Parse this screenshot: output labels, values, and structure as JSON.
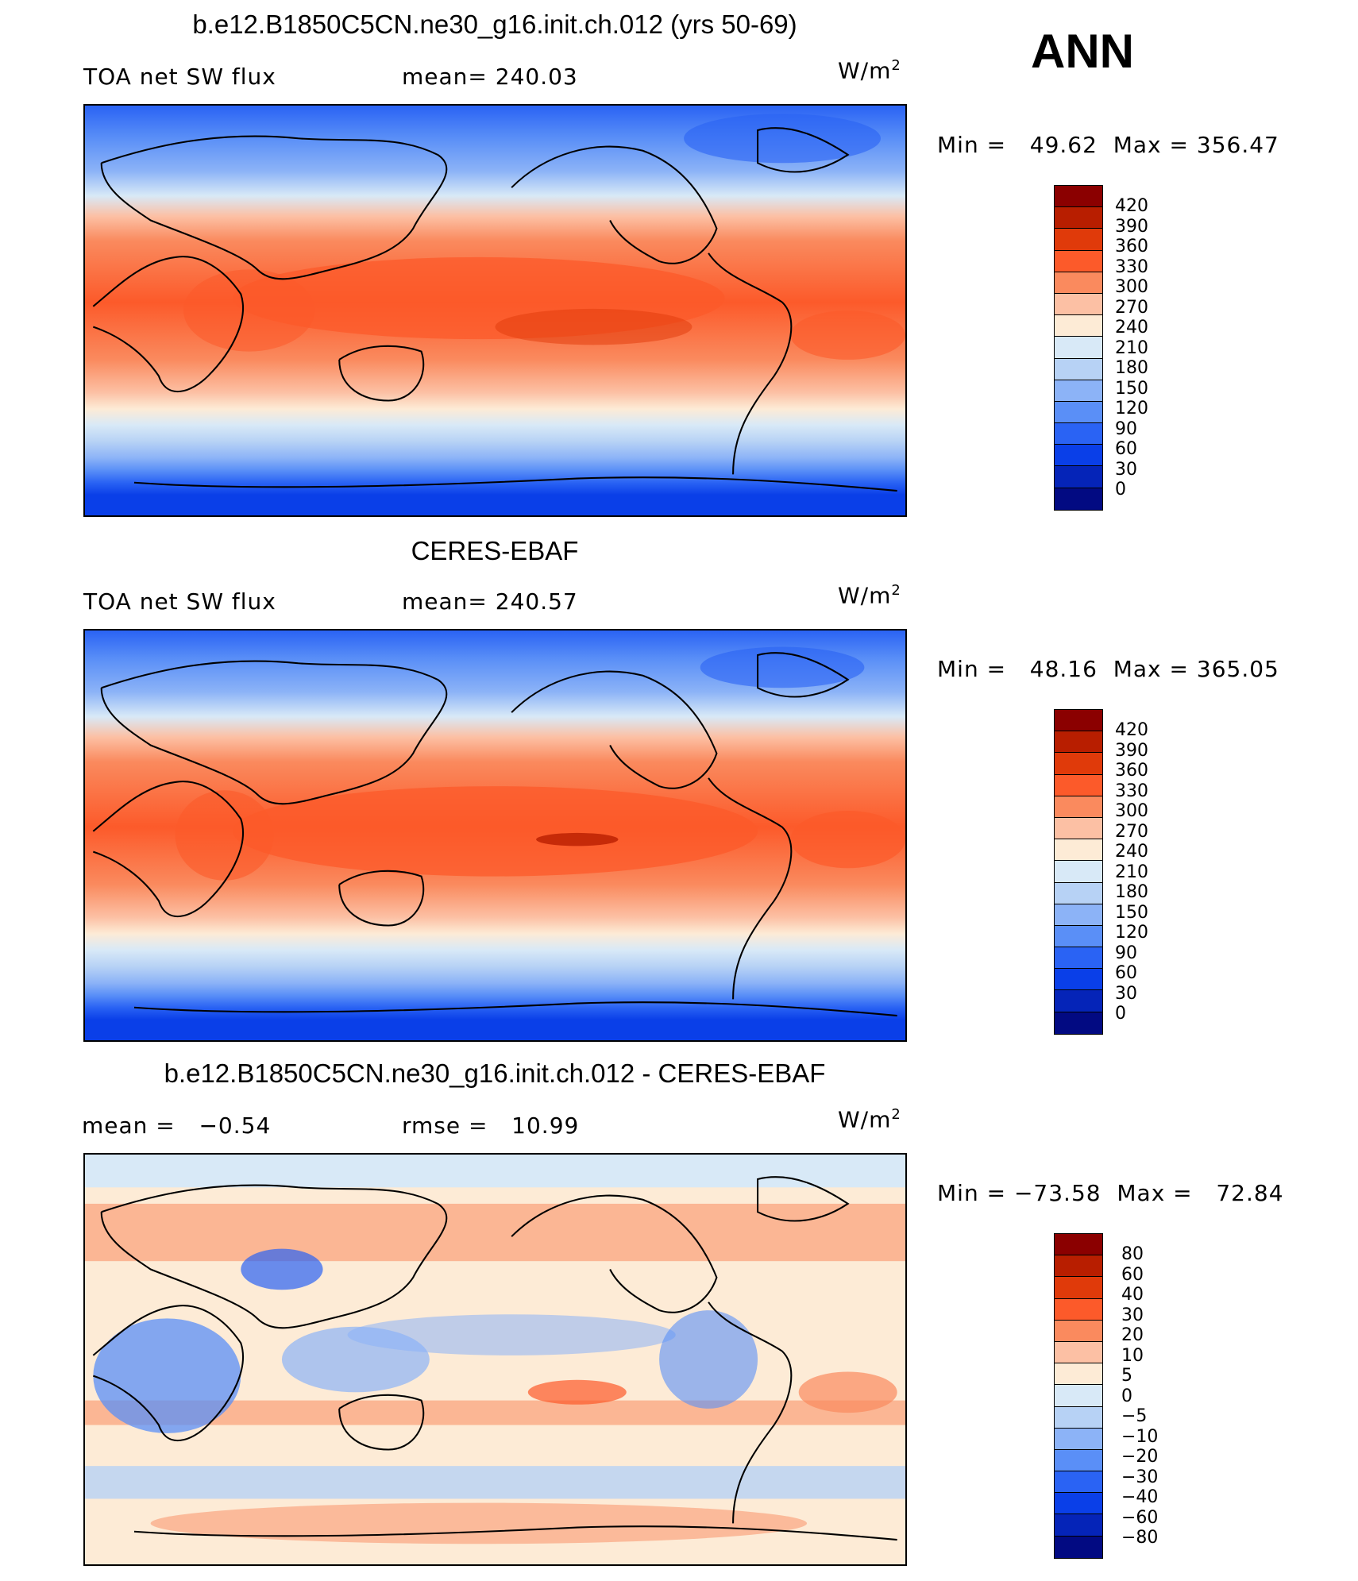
{
  "season": "ANN",
  "units": {
    "base": "W/m",
    "exp": "2"
  },
  "panels": [
    {
      "title": "b.e12.B1850C5CN.ne30_g16.init.ch.012 (yrs 50-69)",
      "left_label": "TOA net SW flux",
      "center_label": "mean= 240.03",
      "minmax": {
        "min_label": "Min =",
        "min": "49.62",
        "max_label": "Max =",
        "max": "356.47"
      },
      "colorbar": {
        "colors": [
          "#8b0000",
          "#b81e00",
          "#e03a0a",
          "#fc5a2a",
          "#fa8a5e",
          "#fcc0a4",
          "#fdebd6",
          "#d8e9f7",
          "#b7d2f5",
          "#8cb3f7",
          "#5a8ff7",
          "#2a63f4",
          "#0a3fe8",
          "#0524b8",
          "#020a82"
        ],
        "labels": [
          "420",
          "390",
          "360",
          "330",
          "300",
          "270",
          "240",
          "210",
          "180",
          "150",
          "120",
          "90",
          "60",
          "30",
          "0"
        ]
      }
    },
    {
      "title": "CERES-EBAF",
      "left_label": "TOA net SW flux",
      "center_label": "mean= 240.57",
      "minmax": {
        "min_label": "Min =",
        "min": "48.16",
        "max_label": "Max =",
        "max": "365.05"
      },
      "colorbar": {
        "colors": [
          "#8b0000",
          "#b81e00",
          "#e03a0a",
          "#fc5a2a",
          "#fa8a5e",
          "#fcc0a4",
          "#fdebd6",
          "#d8e9f7",
          "#b7d2f5",
          "#8cb3f7",
          "#5a8ff7",
          "#2a63f4",
          "#0a3fe8",
          "#0524b8",
          "#020a82"
        ],
        "labels": [
          "420",
          "390",
          "360",
          "330",
          "300",
          "270",
          "240",
          "210",
          "180",
          "150",
          "120",
          "90",
          "60",
          "30",
          "0"
        ]
      }
    },
    {
      "title": "b.e12.B1850C5CN.ne30_g16.init.ch.012 - CERES-EBAF",
      "left_label": "mean =   −0.54",
      "center_label": "rmse =   10.99",
      "minmax": {
        "min_label": "Min =",
        "min": "−73.58",
        "max_label": "Max =",
        "max": "72.84"
      },
      "colorbar": {
        "colors": [
          "#8b0000",
          "#b81e00",
          "#e03a0a",
          "#fc5a2a",
          "#fa8a5e",
          "#fcc0a4",
          "#fdebd6",
          "#d8e9f7",
          "#b7d2f5",
          "#8cb3f7",
          "#5a8ff7",
          "#2a63f4",
          "#0a3fe8",
          "#0524b8",
          "#020a82"
        ],
        "labels": [
          "80",
          "60",
          "40",
          "30",
          "20",
          "10",
          "5",
          "0",
          "−5",
          "−10",
          "−20",
          "−30",
          "−40",
          "−60",
          "−80"
        ]
      }
    }
  ]
}
